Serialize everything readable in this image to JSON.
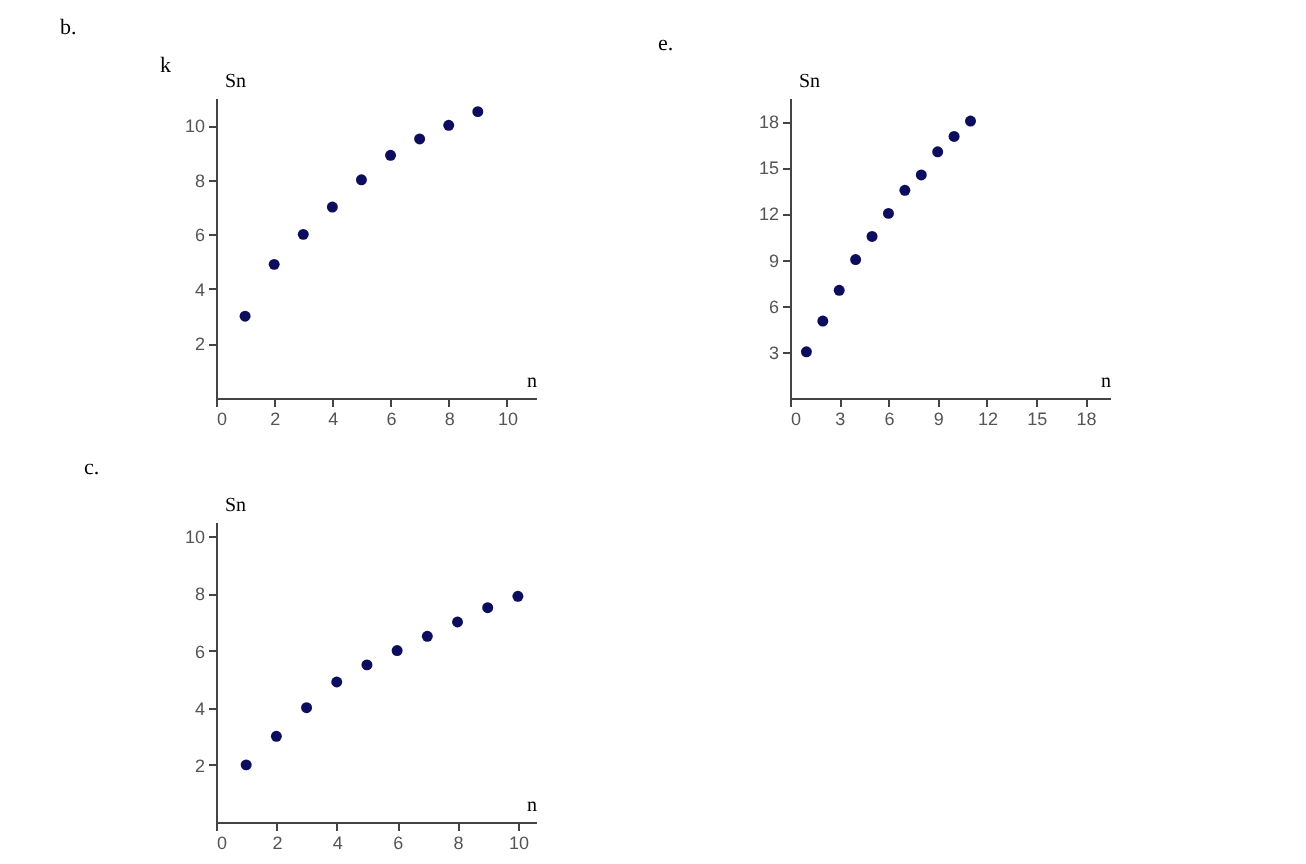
{
  "chart_data": [
    {
      "type": "scatter",
      "title": "b.",
      "xlabel": "n",
      "ylabel": "Sn",
      "annotations": [
        "k"
      ],
      "x": [
        1,
        2,
        3,
        4,
        5,
        6,
        7,
        8,
        9
      ],
      "series": [
        {
          "color": "#0d0d5e",
          "values": [
            3,
            4.9,
            6,
            7,
            8,
            8.9,
            9.5,
            10,
            10.5
          ]
        }
      ],
      "xlim": [
        0,
        11
      ],
      "ylim": [
        0,
        11
      ],
      "xticks": [
        0,
        2,
        4,
        6,
        8,
        10
      ],
      "yticks": [
        2,
        4,
        6,
        8,
        10
      ],
      "grid": false,
      "marker": "circle"
    },
    {
      "type": "scatter",
      "title": "e.",
      "xlabel": "n",
      "ylabel": "Sn",
      "x": [
        1,
        2,
        3,
        4,
        5,
        6,
        7,
        8,
        9,
        10,
        11
      ],
      "series": [
        {
          "color": "#0d0d5e",
          "values": [
            3,
            5,
            7,
            9,
            10.5,
            12,
            13.5,
            14.5,
            16,
            17,
            18
          ]
        }
      ],
      "xlim": [
        0,
        19.5
      ],
      "ylim": [
        0,
        19.5
      ],
      "xticks": [
        0,
        3,
        6,
        9,
        12,
        15,
        18
      ],
      "yticks": [
        3,
        6,
        9,
        12,
        15,
        18
      ],
      "grid": false,
      "marker": "circle"
    },
    {
      "type": "scatter",
      "title": "c.",
      "xlabel": "n",
      "ylabel": "Sn",
      "x": [
        1,
        2,
        3,
        4,
        5,
        6,
        7,
        8,
        9,
        10
      ],
      "series": [
        {
          "color": "#0d0d5e",
          "values": [
            2,
            3,
            4,
            4.9,
            5.5,
            6,
            6.5,
            7,
            7.5,
            7.9
          ]
        }
      ],
      "xlim": [
        0,
        10.6
      ],
      "ylim": [
        0,
        10.5
      ],
      "xticks": [
        0,
        2,
        4,
        6,
        8,
        10
      ],
      "yticks": [
        2,
        4,
        6,
        8,
        10
      ],
      "grid": false,
      "marker": "circle"
    }
  ]
}
